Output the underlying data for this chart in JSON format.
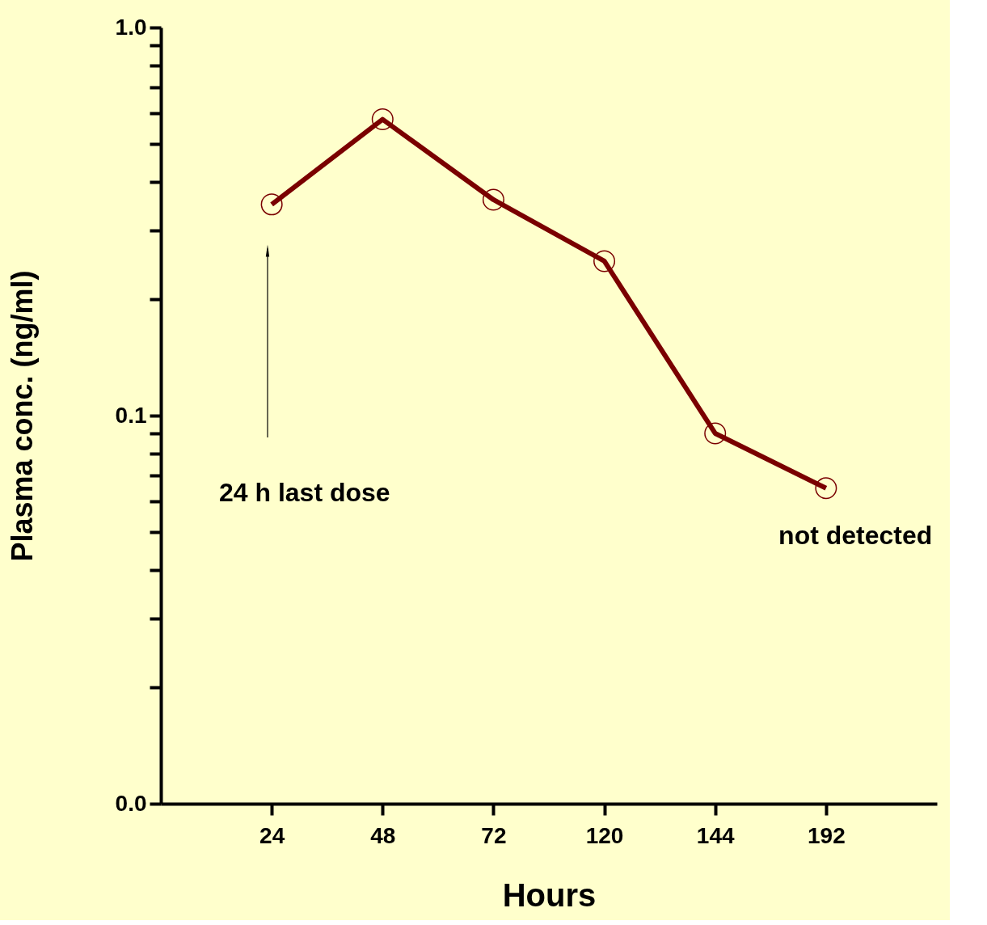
{
  "chart_data": {
    "type": "line",
    "xlabel": "Hours",
    "ylabel": "Plasma conc. (ng/ml)",
    "categories": [
      "24",
      "48",
      "72",
      "120",
      "144",
      "192"
    ],
    "series": [
      {
        "color": "#7a0000",
        "values": [
          0.35,
          0.58,
          0.36,
          0.25,
          0.09,
          0.065
        ]
      }
    ],
    "log": "y",
    "ylim": [
      0.01,
      1
    ],
    "yticks": [
      {
        "value": 0.01,
        "label": "0.0"
      },
      {
        "value": 0.02,
        "label": null
      },
      {
        "value": 0.03,
        "label": null
      },
      {
        "value": 0.04,
        "label": null
      },
      {
        "value": 0.05,
        "label": null
      },
      {
        "value": 0.06,
        "label": null
      },
      {
        "value": 0.07,
        "label": null
      },
      {
        "value": 0.08,
        "label": null
      },
      {
        "value": 0.09,
        "label": null
      },
      {
        "value": 0.1,
        "label": "0.1"
      },
      {
        "value": 0.2,
        "label": null
      },
      {
        "value": 0.3,
        "label": null
      },
      {
        "value": 0.4,
        "label": null
      },
      {
        "value": 0.5,
        "label": null
      },
      {
        "value": 0.6,
        "label": null
      },
      {
        "value": 0.7,
        "label": null
      },
      {
        "value": 0.8,
        "label": null
      },
      {
        "value": 0.9,
        "label": null
      },
      {
        "value": 1,
        "label": "1.0"
      }
    ],
    "annotations": [
      "24 h last dose",
      "not detected"
    ],
    "marker": "circle",
    "line_style": "solid",
    "grid": false
  }
}
